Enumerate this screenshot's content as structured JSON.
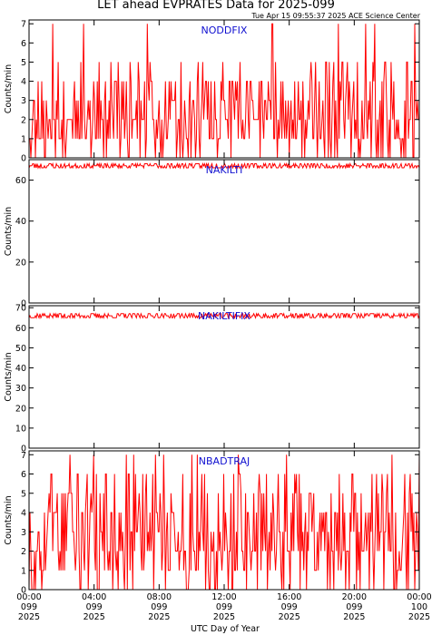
{
  "title": "LET ahead EVPRATES Data for 2025-099",
  "timestamp": "Tue Apr 15 09:55:37 2025 ACE Science Center",
  "x_axis_title": "UTC Day of Year",
  "colors": {
    "trace": "#ff0000",
    "series_label": "#1010d0",
    "frame": "#000000"
  },
  "chart_data": [
    {
      "type": "line",
      "series_label": "NODDFIX",
      "ylabel": "Counts/min",
      "ylim": [
        0,
        7.2
      ],
      "yticks": [
        0,
        1,
        2,
        3,
        4,
        5,
        6,
        7
      ],
      "xlim": [
        0,
        1440
      ],
      "profile": {
        "base": 1.0,
        "spread": 4,
        "max": 7,
        "seed": 11
      },
      "grid": false
    },
    {
      "type": "line",
      "series_label": "NAKILTI",
      "ylabel": "Counts/min",
      "ylim": [
        0,
        70
      ],
      "yticks": [
        0,
        20,
        40,
        60
      ],
      "xlim": [
        0,
        1440
      ],
      "profile": {
        "base": 67,
        "spread": 3,
        "max": 70,
        "seed": 23
      },
      "grid": false
    },
    {
      "type": "line",
      "series_label": "NAKILTIFIX",
      "ylabel": "Counts/min",
      "ylim": [
        0,
        71
      ],
      "yticks": [
        0,
        10,
        20,
        30,
        40,
        50,
        60,
        70
      ],
      "xlim": [
        0,
        1440
      ],
      "profile": {
        "base": 66,
        "spread": 3,
        "max": 69,
        "seed": 37
      },
      "grid": false
    },
    {
      "type": "line",
      "series_label": "NBADTRAJ",
      "ylabel": "Counts/min",
      "ylim": [
        0,
        7.2
      ],
      "yticks": [
        0,
        1,
        2,
        3,
        4,
        5,
        6,
        7
      ],
      "xlim": [
        0,
        1440
      ],
      "profile": {
        "base": 1.2,
        "spread": 5,
        "max": 7,
        "seed": 53
      },
      "grid": false
    }
  ],
  "x_ticks": [
    {
      "minute": 0,
      "time": "00:00",
      "day": "099",
      "year": "2025"
    },
    {
      "minute": 240,
      "time": "04:00",
      "day": "099",
      "year": "2025"
    },
    {
      "minute": 480,
      "time": "08:00",
      "day": "099",
      "year": "2025"
    },
    {
      "minute": 720,
      "time": "12:00",
      "day": "099",
      "year": "2025"
    },
    {
      "minute": 960,
      "time": "16:00",
      "day": "099",
      "year": "2025"
    },
    {
      "minute": 1200,
      "time": "20:00",
      "day": "099",
      "year": "2025"
    },
    {
      "minute": 1440,
      "time": "00:00",
      "day": "100",
      "year": "2025"
    }
  ]
}
